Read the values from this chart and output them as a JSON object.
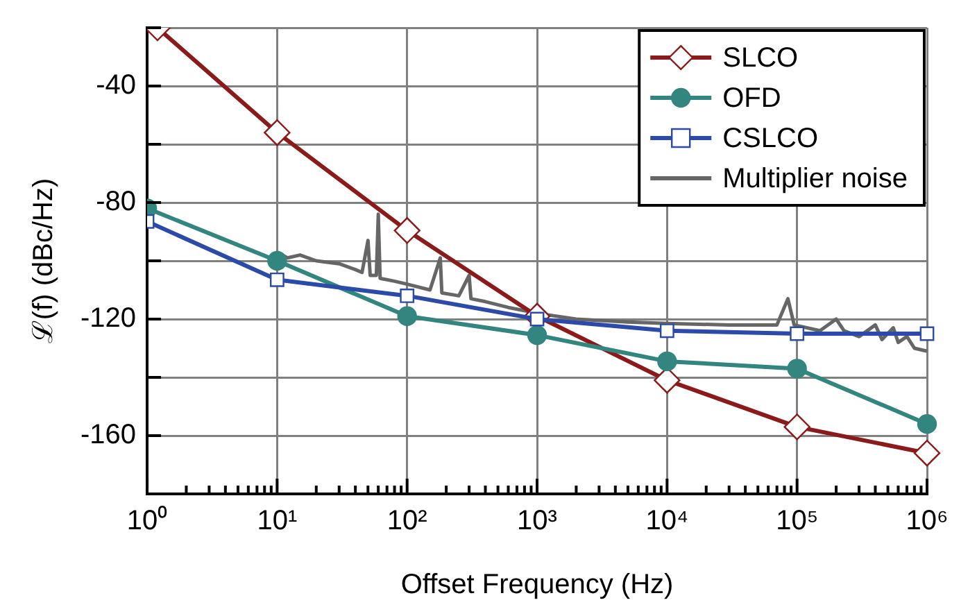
{
  "chart_data": {
    "type": "line",
    "xlabel": "Offset Frequency (Hz)",
    "ylabel": "ℒ(f) (dBc/Hz)",
    "log": "x",
    "grid": true,
    "legend": "top right",
    "xlim": [
      1,
      1000000
    ],
    "ylim": [
      -180,
      -20
    ],
    "xticks": [
      {
        "value": 1,
        "label": "10⁰"
      },
      {
        "value": 2,
        "label": null
      },
      {
        "value": 3,
        "label": null
      },
      {
        "value": 4,
        "label": null
      },
      {
        "value": 5,
        "label": null
      },
      {
        "value": 6,
        "label": null
      },
      {
        "value": 7,
        "label": null
      },
      {
        "value": 8,
        "label": null
      },
      {
        "value": 9,
        "label": null
      },
      {
        "value": 10,
        "label": "10¹"
      },
      {
        "value": 20,
        "label": null
      },
      {
        "value": 30,
        "label": null
      },
      {
        "value": 40,
        "label": null
      },
      {
        "value": 50,
        "label": null
      },
      {
        "value": 60,
        "label": null
      },
      {
        "value": 70,
        "label": null
      },
      {
        "value": 80,
        "label": null
      },
      {
        "value": 90,
        "label": null
      },
      {
        "value": 100,
        "label": "10²"
      },
      {
        "value": 200,
        "label": null
      },
      {
        "value": 300,
        "label": null
      },
      {
        "value": 400,
        "label": null
      },
      {
        "value": 500,
        "label": null
      },
      {
        "value": 600,
        "label": null
      },
      {
        "value": 700,
        "label": null
      },
      {
        "value": 800,
        "label": null
      },
      {
        "value": 900,
        "label": null
      },
      {
        "value": 1000,
        "label": "10³"
      },
      {
        "value": 2000,
        "label": null
      },
      {
        "value": 3000,
        "label": null
      },
      {
        "value": 4000,
        "label": null
      },
      {
        "value": 5000,
        "label": null
      },
      {
        "value": 6000,
        "label": null
      },
      {
        "value": 7000,
        "label": null
      },
      {
        "value": 8000,
        "label": null
      },
      {
        "value": 9000,
        "label": null
      },
      {
        "value": 10000,
        "label": "10⁴"
      },
      {
        "value": 20000,
        "label": null
      },
      {
        "value": 30000,
        "label": null
      },
      {
        "value": 40000,
        "label": null
      },
      {
        "value": 50000,
        "label": null
      },
      {
        "value": 60000,
        "label": null
      },
      {
        "value": 70000,
        "label": null
      },
      {
        "value": 80000,
        "label": null
      },
      {
        "value": 90000,
        "label": null
      },
      {
        "value": 100000,
        "label": "10⁵"
      },
      {
        "value": 200000,
        "label": null
      },
      {
        "value": 300000,
        "label": null
      },
      {
        "value": 400000,
        "label": null
      },
      {
        "value": 500000,
        "label": null
      },
      {
        "value": 600000,
        "label": null
      },
      {
        "value": 700000,
        "label": null
      },
      {
        "value": 800000,
        "label": null
      },
      {
        "value": 900000,
        "label": null
      },
      {
        "value": 1000000,
        "label": "10⁶"
      }
    ],
    "yticks": [
      {
        "value": -180,
        "label": null
      },
      -160,
      {
        "value": -140,
        "label": null
      },
      -120,
      {
        "value": -100,
        "label": null
      },
      -80,
      {
        "value": -60,
        "label": null
      },
      -40,
      {
        "value": -20,
        "label": null
      }
    ],
    "series": [
      {
        "name": "SLCO",
        "color": "#8b1a1a",
        "marker": "diamond",
        "x": [
          1.2,
          10,
          100,
          1000,
          10000,
          100000,
          1000000
        ],
        "values": [
          -20,
          -56,
          -89.6,
          -119,
          -141,
          -157,
          -166
        ]
      },
      {
        "name": "OFD",
        "color": "#33867f",
        "marker": "circle",
        "x": [
          1,
          10,
          100,
          1000,
          10000,
          100000,
          1000000
        ],
        "values": [
          -82,
          -100,
          -119,
          -125.5,
          -134.5,
          -137,
          -156
        ]
      },
      {
        "name": "CSLCO",
        "color": "#2c4aa8",
        "marker": "square",
        "x": [
          1,
          10,
          100,
          1000,
          10000,
          100000,
          1000000
        ],
        "values": [
          -86.5,
          -106.5,
          -112,
          -120,
          -124,
          -125,
          -125
        ]
      },
      {
        "name": "Multiplier noise",
        "color": "#666666",
        "marker": "none",
        "x": [
          10,
          12,
          15,
          20,
          30,
          40,
          45,
          50,
          52,
          58,
          60,
          62,
          80,
          100,
          150,
          180,
          185,
          250,
          300,
          310,
          400,
          600,
          1000,
          2000,
          5000,
          10000,
          30000,
          70000,
          85000,
          95000,
          150000,
          200000,
          230000,
          300000,
          400000,
          450000,
          550000,
          600000,
          700000,
          800000,
          1000000
        ],
        "values": [
          -97,
          -99,
          -98,
          -100,
          -101,
          -103,
          -104,
          -93,
          -105,
          -105,
          -84,
          -106,
          -107,
          -108,
          -110,
          -99,
          -111,
          -112,
          -105,
          -113,
          -114,
          -116,
          -118,
          -120,
          -121,
          -121.5,
          -122,
          -122,
          -113,
          -122,
          -124,
          -120,
          -124,
          -126,
          -122,
          -127,
          -123,
          -128,
          -126,
          -130,
          -131
        ]
      }
    ]
  }
}
